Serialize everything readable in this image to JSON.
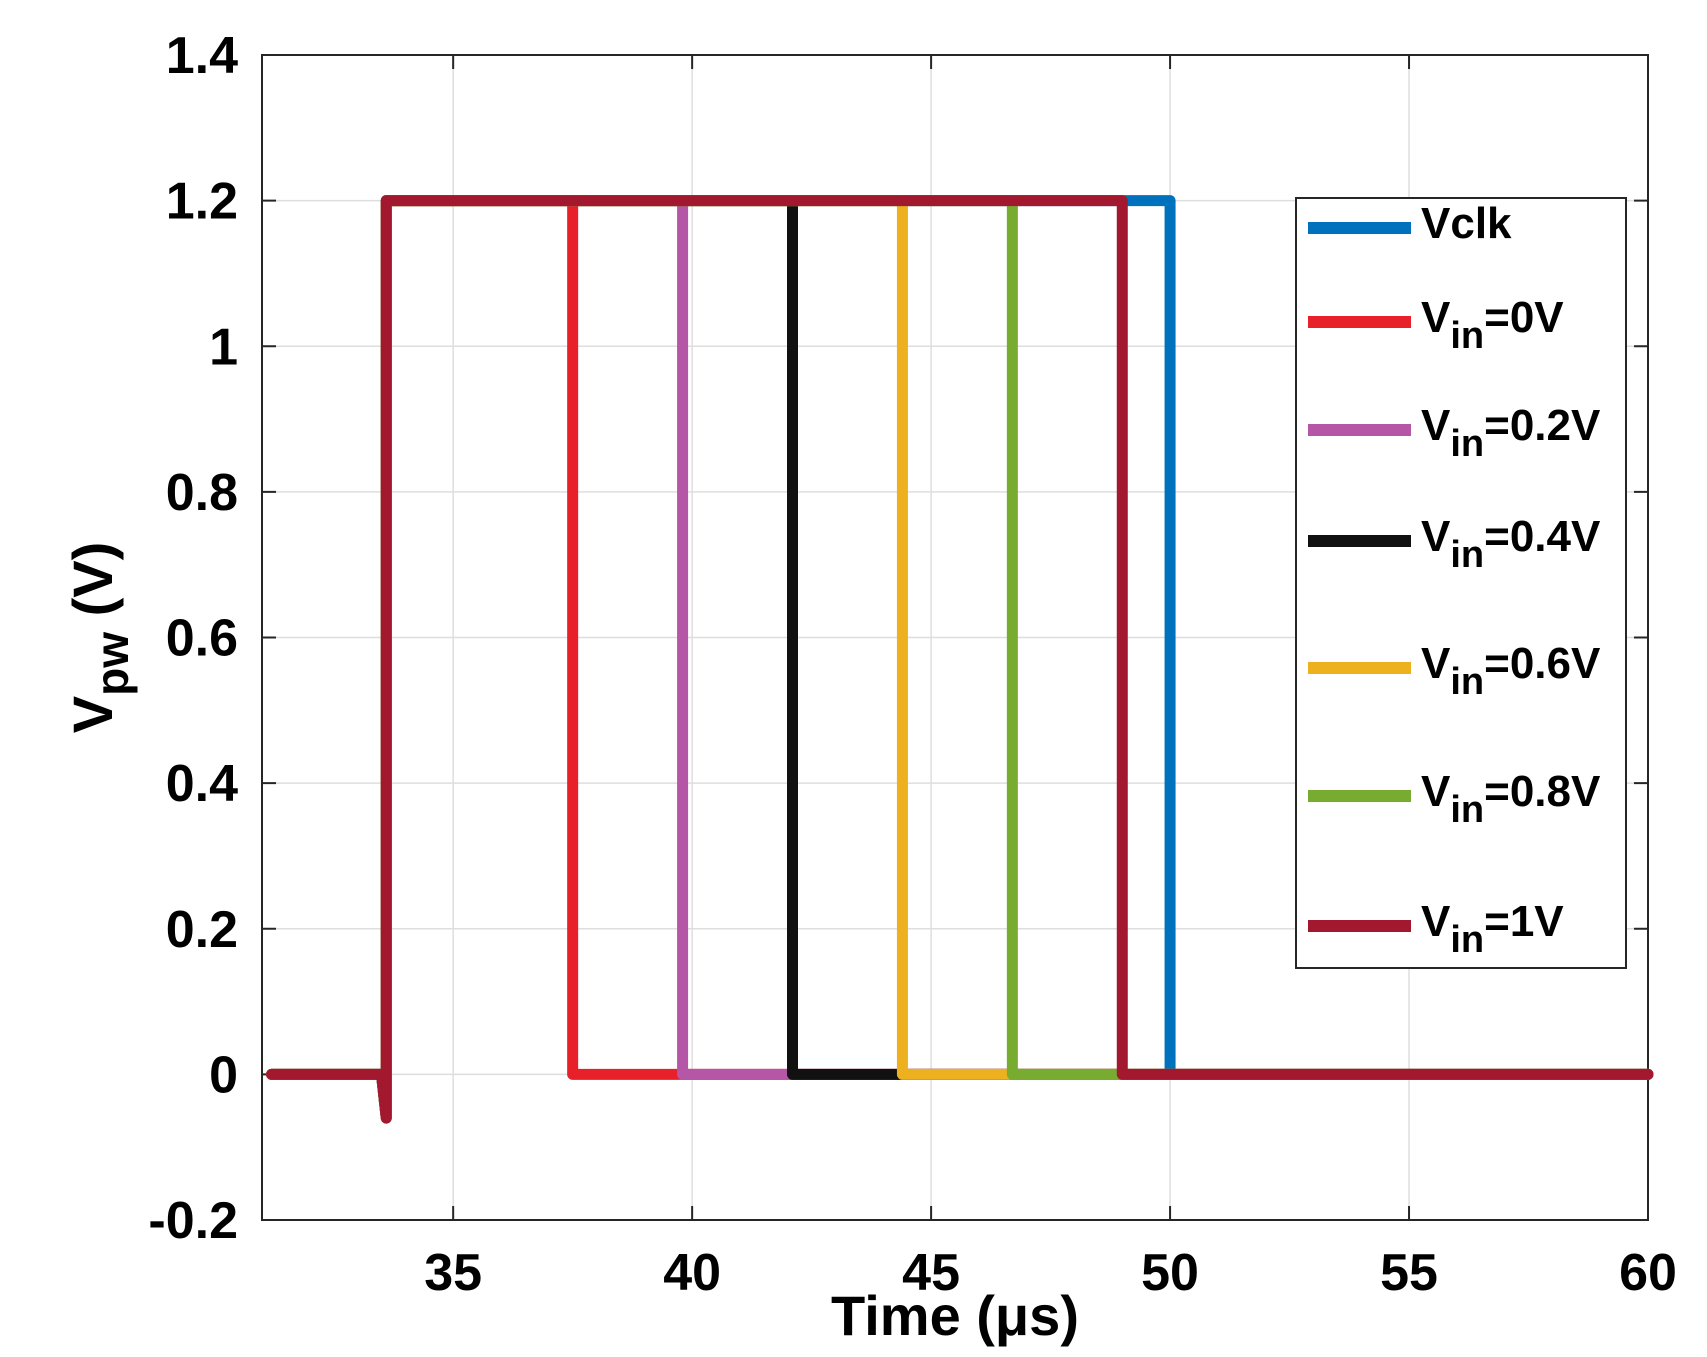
{
  "chart_data": {
    "type": "line",
    "title": "",
    "xlabel": "Time (μs)",
    "ylabel": {
      "main": "V",
      "sub": "pw",
      "unit": " (V)"
    },
    "xlim": [
      31,
      60
    ],
    "ylim": [
      -0.2,
      1.4
    ],
    "xticks": [
      35,
      40,
      45,
      50,
      55,
      60
    ],
    "yticks": [
      -0.2,
      0,
      0.2,
      0.4,
      0.6,
      0.8,
      1,
      1.2,
      1.4
    ],
    "ytick_labels": [
      "-0.2",
      "0",
      "0.2",
      "0.4",
      "0.6",
      "0.8",
      "1",
      "1.2",
      "1.4"
    ],
    "grid": true,
    "legend_position": "top-right",
    "series": [
      {
        "name": "Vclk",
        "label_main": "Vclk",
        "label_sub": "",
        "label_rest": "",
        "color": "#0072BD",
        "x": [
          31.2,
          33.5,
          33.6,
          33.6,
          50.0,
          50.0,
          60.0
        ],
        "y": [
          0,
          0,
          -0.06,
          1.2,
          1.2,
          0,
          0
        ]
      },
      {
        "name": "Vin=0V",
        "label_main": "V",
        "label_sub": "in",
        "label_rest": "=0V",
        "color": "#E8202A",
        "x": [
          31.2,
          33.5,
          33.6,
          33.6,
          37.5,
          37.5,
          60.0
        ],
        "y": [
          0,
          0,
          -0.06,
          1.2,
          1.2,
          0,
          0
        ]
      },
      {
        "name": "Vin=0.2V",
        "label_main": "V",
        "label_sub": "in",
        "label_rest": "=0.2V",
        "color": "#B556A6",
        "x": [
          31.2,
          33.5,
          33.6,
          33.6,
          39.8,
          39.8,
          60.0
        ],
        "y": [
          0,
          0,
          -0.06,
          1.2,
          1.2,
          0,
          0
        ]
      },
      {
        "name": "Vin=0.4V",
        "label_main": "V",
        "label_sub": "in",
        "label_rest": "=0.4V",
        "color": "#111111",
        "x": [
          31.2,
          33.5,
          33.6,
          33.6,
          42.1,
          42.1,
          60.0
        ],
        "y": [
          0,
          0,
          -0.06,
          1.2,
          1.2,
          0,
          0
        ]
      },
      {
        "name": "Vin=0.6V",
        "label_main": "V",
        "label_sub": "in",
        "label_rest": "=0.6V",
        "color": "#EDB120",
        "x": [
          31.2,
          33.5,
          33.6,
          33.6,
          44.4,
          44.4,
          60.0
        ],
        "y": [
          0,
          0,
          -0.06,
          1.2,
          1.2,
          0,
          0
        ]
      },
      {
        "name": "Vin=0.8V",
        "label_main": "V",
        "label_sub": "in",
        "label_rest": "=0.8V",
        "color": "#77AC30",
        "x": [
          31.2,
          33.5,
          33.6,
          33.6,
          46.7,
          46.7,
          60.0
        ],
        "y": [
          0,
          0,
          -0.06,
          1.2,
          1.2,
          0,
          0
        ]
      },
      {
        "name": "Vin=1V",
        "label_main": "V",
        "label_sub": "in",
        "label_rest": "=1V",
        "color": "#A2192F",
        "x": [
          31.2,
          33.5,
          33.6,
          33.6,
          49.0,
          49.0,
          60.0
        ],
        "y": [
          0,
          0,
          -0.06,
          1.2,
          1.2,
          0,
          0
        ]
      }
    ]
  }
}
